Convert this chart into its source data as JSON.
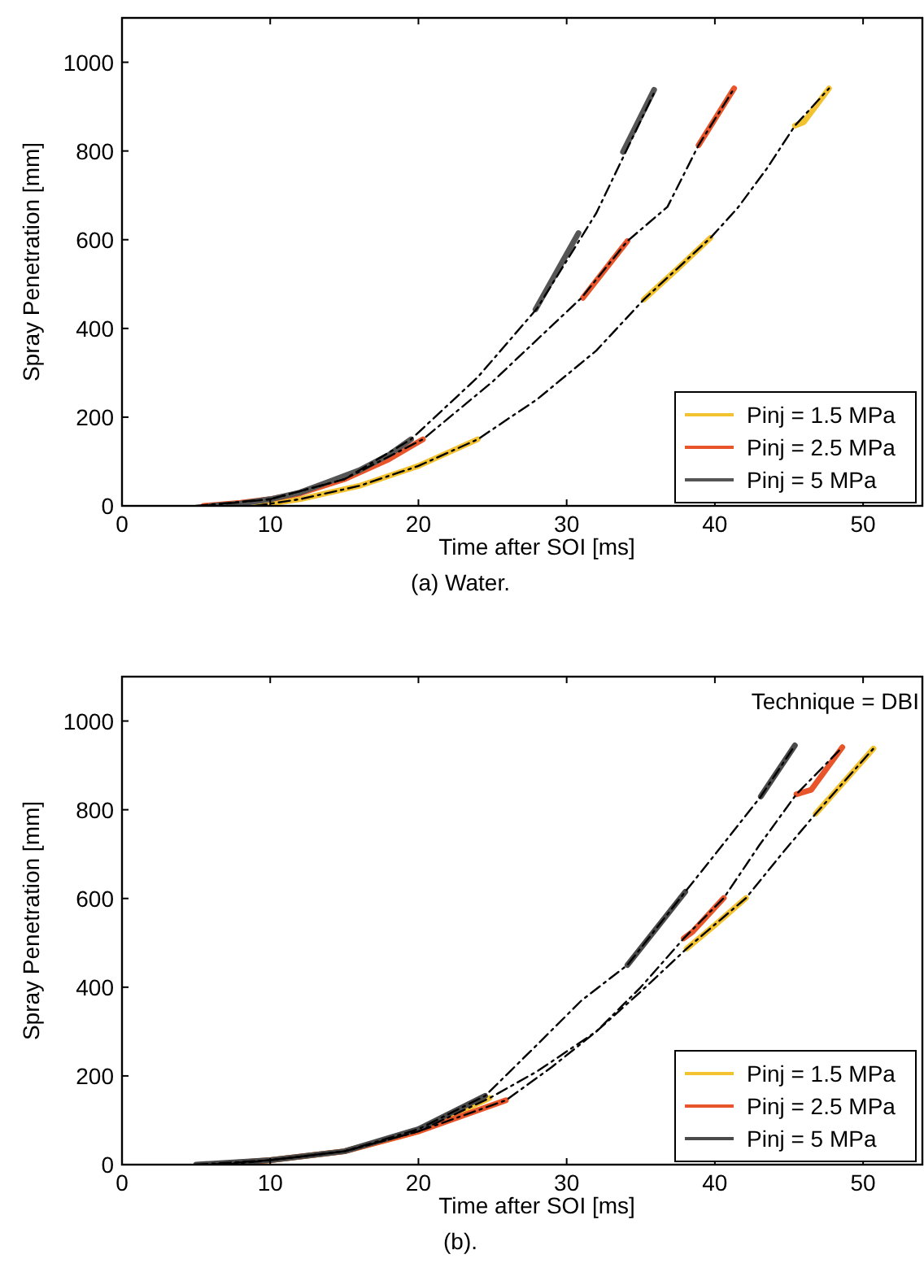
{
  "chart_data": [
    {
      "type": "line",
      "title": "(a) Water.",
      "xlabel": "Time after SOI [ms]",
      "ylabel": "Spray Penetration [mm]",
      "xlim": [
        0,
        54
      ],
      "ylim": [
        0,
        1100
      ],
      "xticks": [
        0,
        10,
        20,
        30,
        40,
        50
      ],
      "yticks": [
        0,
        200,
        400,
        600,
        800,
        1000
      ],
      "legend": "bottom right",
      "marker": "none",
      "series": [
        {
          "color": "#000000",
          "line_style": "dashed",
          "x": [
            5,
            10,
            15,
            19.5,
            24,
            28,
            32,
            36
          ],
          "values": [
            0,
            15,
            60,
            150,
            290,
            445,
            660,
            938
          ]
        },
        {
          "color": "#000000",
          "line_style": "dashed",
          "x": [
            5.5,
            10,
            15,
            20.3,
            25,
            31,
            34.1,
            36.8,
            38.9,
            41.3
          ],
          "values": [
            0,
            15,
            60,
            150,
            280,
            469,
            597,
            674,
            813,
            941
          ]
        },
        {
          "color": "#000000",
          "line_style": "dashed",
          "x": [
            9,
            12,
            16,
            20,
            24,
            28,
            32,
            35.2,
            39.7,
            41.5,
            43.5,
            45.4,
            47.7
          ],
          "values": [
            0,
            15,
            45,
            90,
            150,
            240,
            350,
            465,
            604,
            670,
            760,
            857,
            941
          ]
        },
        {
          "name": "Pinj = 1.5 MPa",
          "color": "#f2c230",
          "line_style": "solid",
          "x": [
            9,
            12,
            16,
            20,
            24,
            null,
            35.2,
            37.5,
            39.7,
            null,
            45.4,
            46,
            47.7
          ],
          "values": [
            0,
            15,
            45,
            90,
            150,
            null,
            465,
            535,
            604,
            null,
            857,
            865,
            941
          ]
        },
        {
          "name": "Pinj = 2.5 MPa",
          "color": "#e8552a",
          "line_style": "solid",
          "x": [
            5.5,
            8,
            10,
            12,
            15,
            18,
            20.3,
            null,
            31.1,
            34.1,
            null,
            38.9,
            41.3
          ],
          "values": [
            0,
            7,
            15,
            28,
            60,
            105,
            150,
            null,
            469,
            597,
            null,
            813,
            941
          ]
        },
        {
          "name": "Pinj = 5 MPa",
          "color": "#555555",
          "line_style": "solid",
          "x": [
            6,
            8,
            10,
            12,
            14,
            16,
            18,
            19.5,
            null,
            27.9,
            30.8,
            null,
            33.8,
            35.9
          ],
          "values": [
            0,
            5,
            15,
            30,
            55,
            80,
            115,
            150,
            null,
            443,
            615,
            null,
            798,
            938
          ]
        }
      ]
    },
    {
      "type": "line",
      "title": "(b).",
      "xlabel": "Time after SOI [ms]",
      "ylabel": "Spray Penetration [mm]",
      "annotations": [
        "Technique = DBI"
      ],
      "xlim": [
        0,
        54
      ],
      "ylim": [
        0,
        1100
      ],
      "xticks": [
        0,
        10,
        20,
        30,
        40,
        50
      ],
      "yticks": [
        0,
        200,
        400,
        600,
        800,
        1000
      ],
      "legend": "bottom right",
      "marker": "none",
      "series": [
        {
          "color": "#000000",
          "line_style": "dashed",
          "x": [
            5,
            10,
            15,
            20,
            24.5,
            28,
            31,
            34.1,
            38,
            40.5,
            43.1,
            45.4
          ],
          "values": [
            0,
            10,
            30,
            80,
            155,
            270,
            370,
            450,
            615,
            720,
            830,
            945
          ]
        },
        {
          "color": "#000000",
          "line_style": "dashed",
          "x": [
            6,
            10,
            15,
            20,
            25.9,
            29,
            32,
            35,
            37.9,
            40.6,
            43,
            45.5,
            48.6
          ],
          "values": [
            0,
            10,
            30,
            75,
            145,
            220,
            300,
            400,
            510,
            601,
            720,
            835,
            941
          ]
        },
        {
          "color": "#000000",
          "line_style": "dashed",
          "x": [
            7,
            10,
            15,
            20,
            24.8,
            28,
            32,
            35,
            38.1,
            42.1,
            44.5,
            46.8,
            50.7
          ],
          "values": [
            0,
            10,
            30,
            75,
            150,
            210,
            300,
            390,
            487,
            601,
            700,
            791,
            938
          ]
        },
        {
          "name": "Pinj = 1.5 MPa",
          "color": "#f2c230",
          "line_style": "solid",
          "x": [
            7,
            10,
            15,
            20,
            24.8,
            null,
            38.1,
            40,
            42.1,
            null,
            46.8,
            50.7
          ],
          "values": [
            0,
            10,
            30,
            75,
            150,
            null,
            487,
            540,
            601,
            null,
            791,
            938
          ]
        },
        {
          "name": "Pinj = 2.5 MPa",
          "color": "#e8552a",
          "line_style": "solid",
          "x": [
            6,
            10,
            15,
            20,
            25.9,
            null,
            37.9,
            38.5,
            40.6,
            null,
            45.5,
            46.5,
            48.6
          ],
          "values": [
            0,
            10,
            30,
            75,
            145,
            null,
            510,
            525,
            601,
            null,
            835,
            845,
            941
          ]
        },
        {
          "name": "Pinj = 5 MPa",
          "color": "#4a4a4a",
          "line_style": "solid",
          "x": [
            5,
            10,
            15,
            20,
            24.5,
            null,
            34.1,
            38,
            null,
            43.1,
            45.4
          ],
          "values": [
            0,
            10,
            30,
            80,
            155,
            null,
            450,
            615,
            null,
            830,
            945
          ]
        }
      ]
    }
  ]
}
